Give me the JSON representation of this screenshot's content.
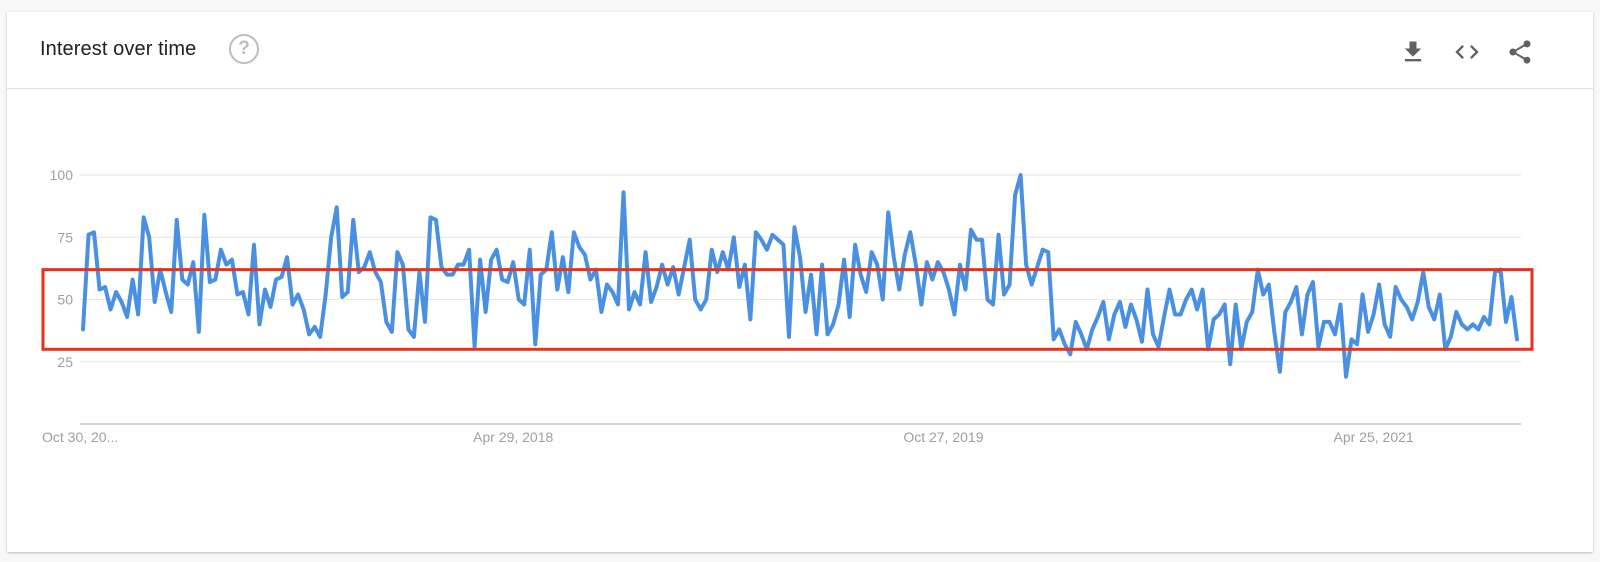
{
  "header": {
    "title": "Interest over time",
    "help_glyph": "?",
    "actions": [
      {
        "name": "download-icon"
      },
      {
        "name": "embed-code-icon"
      },
      {
        "name": "share-icon"
      }
    ]
  },
  "colors": {
    "line": "#4a90e2",
    "highlight": "#e8321e",
    "grid": "#e6e6e6",
    "axis": "#cccccc",
    "tick_text": "#9e9e9e"
  },
  "chart_data": {
    "type": "line",
    "title": "Interest over time",
    "xlabel": "",
    "ylabel": "",
    "ylim": [
      0,
      100
    ],
    "yticks": [
      25,
      50,
      75,
      100
    ],
    "grid": true,
    "legend": "none",
    "xticks": [
      {
        "label": "Oct 30, 20...",
        "index": 0
      },
      {
        "label": "Apr 29, 2018",
        "index": 78
      },
      {
        "label": "Oct 27, 2019",
        "index": 156
      },
      {
        "label": "Apr 25, 2021",
        "index": 234
      }
    ],
    "highlight_band": {
      "y_low": 30,
      "y_high": 62
    },
    "series": [
      {
        "values": [
          38,
          76,
          77,
          54,
          55,
          46,
          53,
          49,
          43,
          58,
          44,
          83,
          75,
          49,
          62,
          53,
          45,
          82,
          58,
          56,
          65,
          37,
          84,
          57,
          58,
          70,
          64,
          66,
          52,
          53,
          44,
          72,
          40,
          54,
          47,
          58,
          59,
          67,
          48,
          52,
          46,
          36,
          39,
          35,
          52,
          75,
          87,
          51,
          53,
          82,
          61,
          63,
          69,
          61,
          57,
          41,
          37,
          69,
          64,
          38,
          35,
          61,
          41,
          83,
          82,
          63,
          60,
          60,
          64,
          64,
          70,
          31,
          66,
          45,
          66,
          70,
          58,
          57,
          65,
          50,
          48,
          70,
          32,
          60,
          62,
          77,
          54,
          67,
          53,
          77,
          71,
          68,
          58,
          62,
          45,
          56,
          53,
          48,
          93,
          46,
          53,
          48,
          69,
          49,
          55,
          64,
          56,
          63,
          52,
          63,
          74,
          50,
          46,
          50,
          70,
          61,
          69,
          62,
          75,
          55,
          64,
          42,
          77,
          74,
          70,
          76,
          74,
          72,
          35,
          79,
          67,
          45,
          60,
          36,
          64,
          36,
          40,
          48,
          66,
          43,
          72,
          60,
          53,
          69,
          64,
          50,
          85,
          67,
          54,
          68,
          77,
          64,
          48,
          65,
          58,
          65,
          61,
          54,
          44,
          64,
          54,
          78,
          74,
          74,
          50,
          48,
          76,
          52,
          56,
          92,
          100,
          64,
          56,
          63,
          70,
          69,
          34,
          38,
          32,
          28,
          41,
          36,
          30,
          38,
          43,
          49,
          34,
          44,
          49,
          39,
          48,
          42,
          33,
          54,
          36,
          31,
          43,
          54,
          44,
          44,
          50,
          54,
          46,
          54,
          30,
          42,
          44,
          48,
          24,
          48,
          30,
          41,
          45,
          62,
          52,
          56,
          37,
          21,
          45,
          49,
          55,
          36,
          52,
          57,
          31,
          41,
          41,
          36,
          48,
          19,
          34,
          32,
          52,
          37,
          44,
          56,
          40,
          35,
          55,
          50,
          47,
          42,
          49,
          61,
          47,
          42,
          52,
          30,
          35,
          45,
          40,
          38,
          40,
          38,
          43,
          40,
          61,
          62,
          41,
          51,
          34
        ]
      }
    ]
  }
}
